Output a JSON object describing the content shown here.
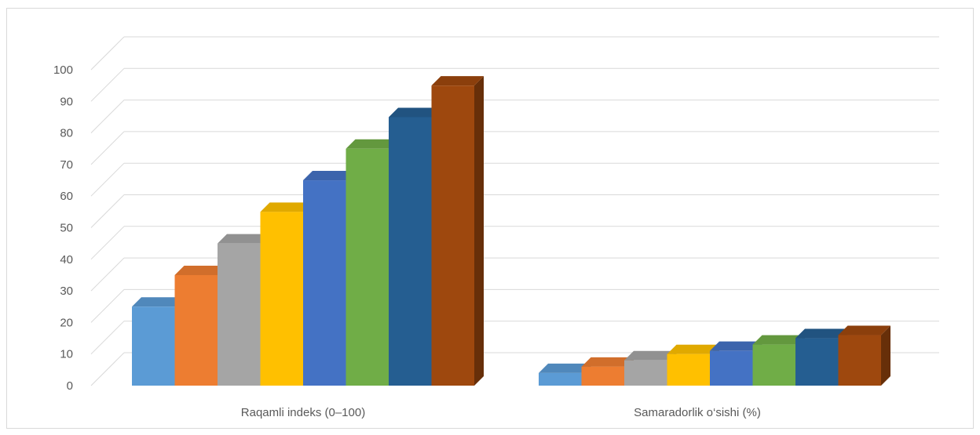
{
  "chart_data": {
    "type": "bar",
    "style": "3d-clustered-column",
    "title": "",
    "xlabel": "",
    "ylabel": "",
    "ylim": [
      0,
      100
    ],
    "yticks": [
      0,
      10,
      20,
      30,
      40,
      50,
      60,
      70,
      80,
      90,
      100
    ],
    "grid": true,
    "legend": "none",
    "categories": [
      "Raqamli indeks (0–100)",
      "Samaradorlik o‘sishi (%)"
    ],
    "series": [
      {
        "color": "#5b9bd5",
        "values": [
          25,
          4
        ]
      },
      {
        "color": "#ed7d31",
        "values": [
          35,
          6
        ]
      },
      {
        "color": "#a5a5a5",
        "values": [
          45,
          8
        ]
      },
      {
        "color": "#ffc000",
        "values": [
          55,
          10
        ]
      },
      {
        "color": "#4472c4",
        "values": [
          65,
          11
        ]
      },
      {
        "color": "#70ad47",
        "values": [
          75,
          13
        ]
      },
      {
        "color": "#255e91",
        "values": [
          85,
          15
        ]
      },
      {
        "color": "#9e480e",
        "values": [
          95,
          16
        ]
      }
    ]
  }
}
